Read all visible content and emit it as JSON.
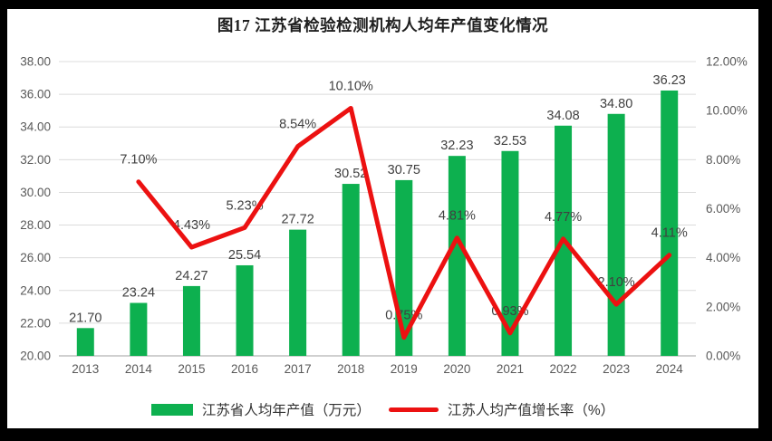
{
  "chart_data": {
    "type": "combo_bar_line",
    "title": "图17  江苏省检验检测机构人均年产值变化情况",
    "categories": [
      "2013",
      "2014",
      "2015",
      "2016",
      "2017",
      "2018",
      "2019",
      "2020",
      "2021",
      "2022",
      "2023",
      "2024"
    ],
    "series": [
      {
        "name": "江苏省人均年产值（万元）",
        "type": "bar",
        "axis": "left",
        "color": "#0db04f",
        "values": [
          21.7,
          23.24,
          24.27,
          25.54,
          27.72,
          30.52,
          30.75,
          32.23,
          32.53,
          34.08,
          34.8,
          36.23
        ],
        "labels": [
          "21.70",
          "23.24",
          "24.27",
          "25.54",
          "27.72",
          "30.52",
          "30.75",
          "32.23",
          "32.53",
          "34.08",
          "34.80",
          "36.23"
        ]
      },
      {
        "name": "江苏人均产值增长率（%）",
        "type": "line",
        "axis": "right",
        "color": "#ec1111",
        "values": [
          null,
          7.1,
          4.43,
          5.23,
          8.54,
          10.1,
          0.75,
          4.81,
          0.93,
          4.77,
          2.1,
          4.11
        ],
        "labels": [
          "",
          "7.10%",
          "4.43%",
          "5.23%",
          "8.54%",
          "10.10%",
          "0.75%",
          "4.81%",
          "0.93%",
          "4.77%",
          "2.10%",
          "4.11%"
        ]
      }
    ],
    "left_axis": {
      "min": 20,
      "max": 38,
      "step": 2,
      "ticks": [
        "38.00",
        "36.00",
        "34.00",
        "32.00",
        "30.00",
        "28.00",
        "26.00",
        "24.00",
        "22.00",
        "20.00"
      ]
    },
    "right_axis": {
      "min": 0,
      "max": 12,
      "step": 2,
      "ticks": [
        "12.00%",
        "10.00%",
        "8.00%",
        "6.00%",
        "4.00%",
        "2.00%",
        "0.00%"
      ]
    },
    "grid": true,
    "legend_position": "bottom"
  }
}
